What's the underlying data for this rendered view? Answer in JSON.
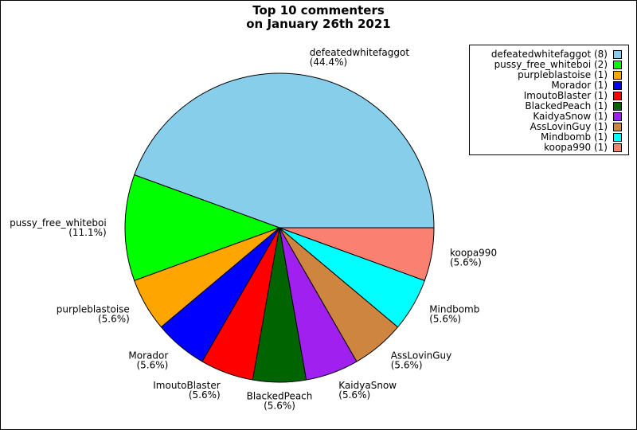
{
  "chart_data": {
    "type": "pie",
    "title_lines": [
      "Top 10 commenters",
      "on January 26th 2021"
    ],
    "start_angle": 0,
    "direction": "counterclockwise",
    "legend_position": "top-right",
    "slices": [
      {
        "label": "defeatedwhitefaggot",
        "value": 8,
        "pct": "(44.4%)",
        "legend": "defeatedwhitefaggot (8)",
        "color": "#87ceeb"
      },
      {
        "label": "pussy_free_whiteboi",
        "value": 2,
        "pct": "(11.1%)",
        "legend": "pussy_free_whiteboi (2)",
        "color": "#00ff00"
      },
      {
        "label": "purpleblastoise",
        "value": 1,
        "pct": "(5.6%)",
        "legend": "purpleblastoise (1)",
        "color": "#ffa500"
      },
      {
        "label": "Morador",
        "value": 1,
        "pct": "(5.6%)",
        "legend": "Morador (1)",
        "color": "#0000ff"
      },
      {
        "label": "ImoutoBlaster",
        "value": 1,
        "pct": "(5.6%)",
        "legend": "ImoutoBlaster (1)",
        "color": "#ff0000"
      },
      {
        "label": "BlackedPeach",
        "value": 1,
        "pct": "(5.6%)",
        "legend": "BlackedPeach (1)",
        "color": "#006400"
      },
      {
        "label": "KaidyaSnow",
        "value": 1,
        "pct": "(5.6%)",
        "legend": "KaidyaSnow (1)",
        "color": "#a020f0"
      },
      {
        "label": "AssLovinGuy",
        "value": 1,
        "pct": "(5.6%)",
        "legend": "AssLovinGuy (1)",
        "color": "#cd853f"
      },
      {
        "label": "Mindbomb",
        "value": 1,
        "pct": "(5.6%)",
        "legend": "Mindbomb (1)",
        "color": "#00ffff"
      },
      {
        "label": "koopa990",
        "value": 1,
        "pct": "(5.6%)",
        "legend": "koopa990 (1)",
        "color": "#fa8072"
      }
    ]
  }
}
